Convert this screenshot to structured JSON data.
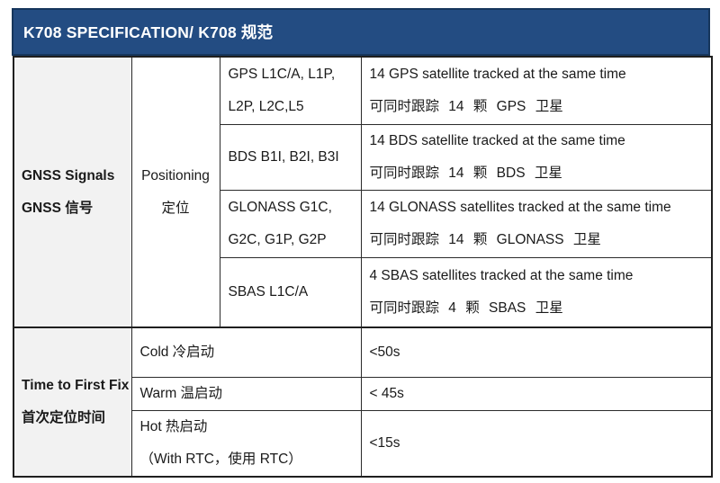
{
  "page": {
    "title": "K708 SPECIFICATION/ K708 规范"
  },
  "colors": {
    "header_bg": "#234C82",
    "header_border": "#16365C",
    "label_col_bg": "#F2F2F2",
    "grid": "#2b2b2b"
  },
  "gnss": {
    "label_en": "GNSS Signals",
    "label_zh": "GNSS 信号",
    "positioning_en": "Positioning",
    "positioning_zh": "定位",
    "rows": [
      {
        "signal1": "GPS L1C/A, L1P,",
        "signal2": "L2P, L2C,L5",
        "desc_en": "14 GPS satellite tracked at the same time",
        "desc_zh": "可同时跟踪 14 颗 GPS 卫星"
      },
      {
        "signal1": "BDS B1I, B2I, B3I",
        "signal2": "",
        "desc_en": "14 BDS satellite tracked at the same time",
        "desc_zh": "可同时跟踪 14 颗 BDS 卫星"
      },
      {
        "signal1": "GLONASS G1C,",
        "signal2": "G2C, G1P, G2P",
        "desc_en": "14 GLONASS satellites tracked at the same time",
        "desc_zh": "可同时跟踪 14 颗 GLONASS 卫星"
      },
      {
        "signal1": "SBAS L1C/A",
        "signal2": "",
        "desc_en": "4 SBAS satellites tracked at the same time",
        "desc_zh": "可同时跟踪 4 颗 SBAS 卫星"
      }
    ]
  },
  "ttff": {
    "label_en": "Time to First Fix",
    "label_zh": "首次定位时间",
    "rows": [
      {
        "mode1": "Cold 冷启动",
        "mode2": "",
        "value": "<50s"
      },
      {
        "mode1": "Warm 温启动",
        "mode2": "",
        "value": "< 45s"
      },
      {
        "mode1": "Hot 热启动",
        "mode2": "（With RTC，使用  RTC）",
        "value": "<15s"
      }
    ]
  }
}
